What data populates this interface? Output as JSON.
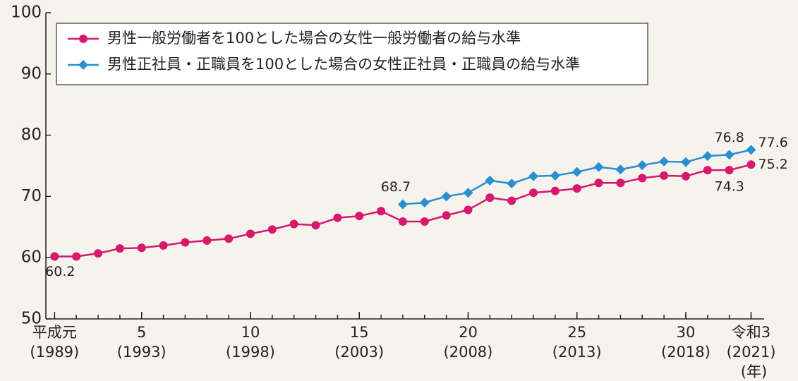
{
  "chart_data": {
    "type": "line",
    "x_unit": "(年)",
    "x": [
      1989,
      1990,
      1991,
      1992,
      1993,
      1994,
      1995,
      1996,
      1997,
      1998,
      1999,
      2000,
      2001,
      2002,
      2003,
      2004,
      2005,
      2006,
      2007,
      2008,
      2009,
      2010,
      2011,
      2012,
      2013,
      2014,
      2015,
      2016,
      2017,
      2018,
      2019,
      2020,
      2021
    ],
    "series": [
      {
        "name": "男性一般労働者を100とした場合の女性一般労働者の給与水準",
        "color": "#d6186e",
        "marker": "circle",
        "values": [
          60.2,
          60.2,
          60.7,
          61.5,
          61.6,
          62.0,
          62.5,
          62.8,
          63.1,
          63.9,
          64.6,
          65.5,
          65.3,
          66.5,
          66.8,
          67.6,
          65.9,
          65.9,
          66.9,
          67.8,
          69.8,
          69.3,
          70.6,
          70.9,
          71.3,
          72.2,
          72.2,
          73.0,
          73.4,
          73.3,
          74.3,
          74.3,
          75.2
        ],
        "value_labels": [
          "60.2",
          null,
          null,
          null,
          null,
          null,
          null,
          null,
          null,
          null,
          null,
          null,
          null,
          null,
          null,
          null,
          null,
          null,
          null,
          null,
          null,
          null,
          null,
          null,
          null,
          null,
          null,
          null,
          null,
          null,
          null,
          "74.3",
          "75.2"
        ]
      },
      {
        "name": "男性正社員・正職員を100とした場合の女性正社員・正職員の給与水準",
        "color": "#2a8fd0",
        "marker": "diamond",
        "values": [
          null,
          null,
          null,
          null,
          null,
          null,
          null,
          null,
          null,
          null,
          null,
          null,
          null,
          null,
          null,
          null,
          68.7,
          69.0,
          70.0,
          70.6,
          72.6,
          72.1,
          73.3,
          73.4,
          74.0,
          74.8,
          74.4,
          75.1,
          75.7,
          75.6,
          76.6,
          76.8,
          77.6
        ],
        "value_labels": [
          null,
          null,
          null,
          null,
          null,
          null,
          null,
          null,
          null,
          null,
          null,
          null,
          null,
          null,
          null,
          null,
          "68.7",
          null,
          null,
          null,
          null,
          null,
          null,
          null,
          null,
          null,
          null,
          null,
          null,
          null,
          null,
          "76.8",
          "77.6"
        ]
      }
    ],
    "xlim": [
      1988.6,
      2021.6
    ],
    "xticks": [
      {
        "value": 1989,
        "label": "平成元\n(1989)"
      },
      {
        "value": 1993,
        "label": "5\n(1993)"
      },
      {
        "value": 1998,
        "label": "10\n(1998)"
      },
      {
        "value": 2003,
        "label": "15\n(2003)"
      },
      {
        "value": 2008,
        "label": "20\n(2008)"
      },
      {
        "value": 2013,
        "label": "25\n(2013)"
      },
      {
        "value": 2018,
        "label": "30\n(2018)"
      },
      {
        "value": 2021,
        "label": "令和3\n(2021)"
      }
    ],
    "ylim": [
      50,
      100
    ],
    "yticks": [
      50,
      60,
      70,
      80,
      90,
      100
    ],
    "legend": "upper left"
  }
}
